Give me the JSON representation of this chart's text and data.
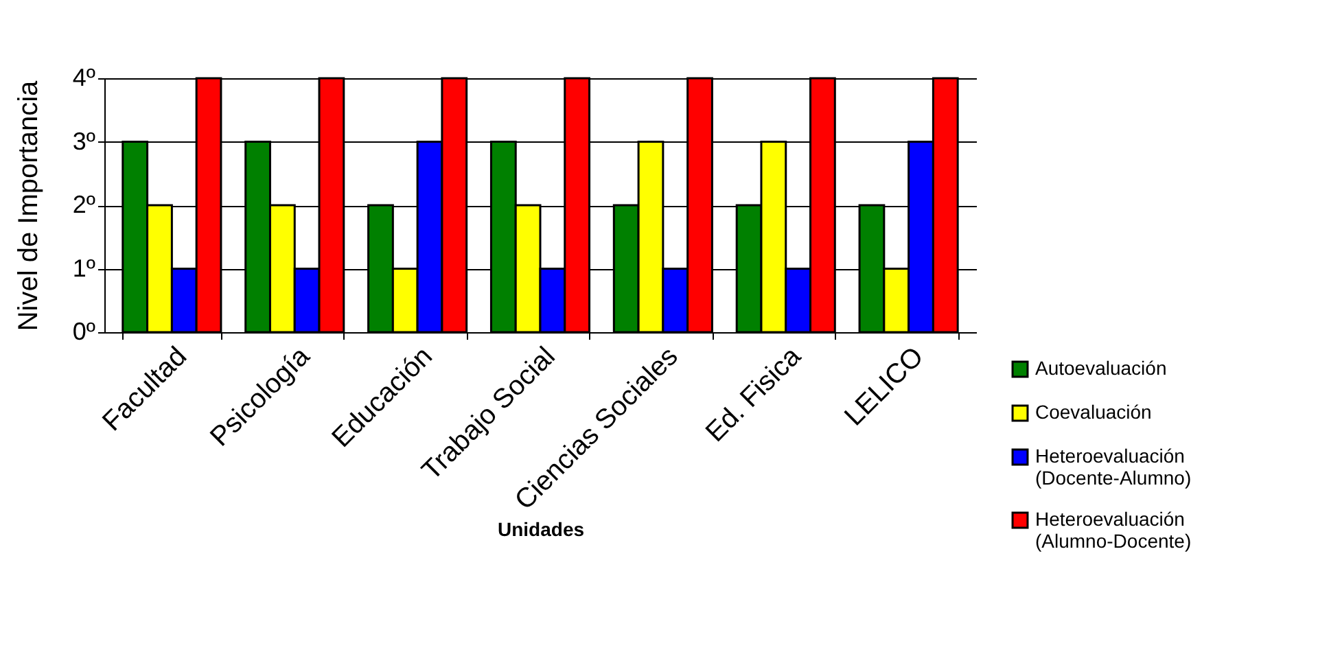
{
  "chart_data": {
    "type": "bar",
    "xlabel": "Unidades",
    "ylabel": "Nivel de Importancia",
    "categories": [
      "Facultad",
      "Psicología",
      "Educación",
      "Trabajo Social",
      "Ciencias Sociales",
      "Ed. Fisica",
      "LELICO"
    ],
    "series": [
      {
        "name": "Autoevaluación",
        "color": "#008000",
        "values": [
          3,
          3,
          2,
          3,
          2,
          2,
          2
        ]
      },
      {
        "name": "Coevaluación",
        "color": "#ffff00",
        "values": [
          2,
          2,
          1,
          2,
          3,
          3,
          1
        ]
      },
      {
        "name": "Heteroevaluación (Docente-Alumno)",
        "color": "#0000ff",
        "values": [
          1,
          1,
          3,
          1,
          1,
          1,
          3
        ]
      },
      {
        "name": "Heteroevaluación (Alumno-Docente)",
        "color": "#ff0000",
        "values": [
          4,
          4,
          4,
          4,
          4,
          4,
          4
        ]
      }
    ],
    "ylim": [
      0,
      4
    ],
    "yticks": [
      {
        "value": 0,
        "label": "0º"
      },
      {
        "value": 1,
        "label": "1º"
      },
      {
        "value": 2,
        "label": "2º"
      },
      {
        "value": 3,
        "label": "3º"
      },
      {
        "value": 4,
        "label": "4º"
      }
    ],
    "grid": "y",
    "legend": "bottom right"
  }
}
